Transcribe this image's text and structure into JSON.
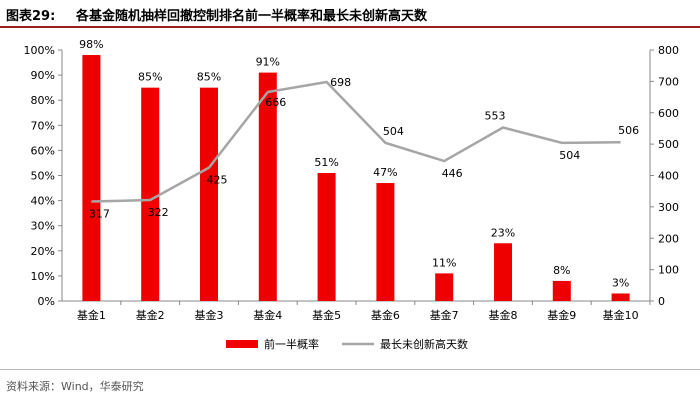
{
  "header": {
    "figure_number": "图表29:",
    "title": "各基金随机抽样回撤控制排名前一半概率和最长未创新高天数"
  },
  "source": "资料来源：Wind，华泰研究",
  "colors": {
    "bar": "#ee0000",
    "line": "#a6a6a6",
    "title_rule": "#9c1f1f"
  },
  "chart_data": {
    "type": "bar+line",
    "categories": [
      "基金1",
      "基金2",
      "基金3",
      "基金4",
      "基金5",
      "基金6",
      "基金7",
      "基金8",
      "基金9",
      "基金10"
    ],
    "series": [
      {
        "name": "前一半概率",
        "type": "bar",
        "axis": "left",
        "values": [
          98,
          85,
          85,
          91,
          51,
          47,
          11,
          23,
          8,
          3
        ],
        "labels": [
          "98%",
          "85%",
          "85%",
          "91%",
          "51%",
          "47%",
          "11%",
          "23%",
          "8%",
          "3%"
        ]
      },
      {
        "name": "最长未创新高天数",
        "type": "line",
        "axis": "right",
        "values": [
          317,
          322,
          425,
          666,
          698,
          504,
          446,
          553,
          504,
          506
        ],
        "labels": [
          "317",
          "322",
          "425",
          "666",
          "698",
          "504",
          "446",
          "553",
          "504",
          "506"
        ]
      }
    ],
    "y_left": {
      "min": 0,
      "max": 100,
      "ticks": [
        "0%",
        "10%",
        "20%",
        "30%",
        "40%",
        "50%",
        "60%",
        "70%",
        "80%",
        "90%",
        "100%"
      ]
    },
    "y_right": {
      "min": 0,
      "max": 800,
      "ticks": [
        "0",
        "100",
        "200",
        "300",
        "400",
        "500",
        "600",
        "700",
        "800"
      ]
    },
    "grid": false,
    "legend_position": "bottom"
  }
}
